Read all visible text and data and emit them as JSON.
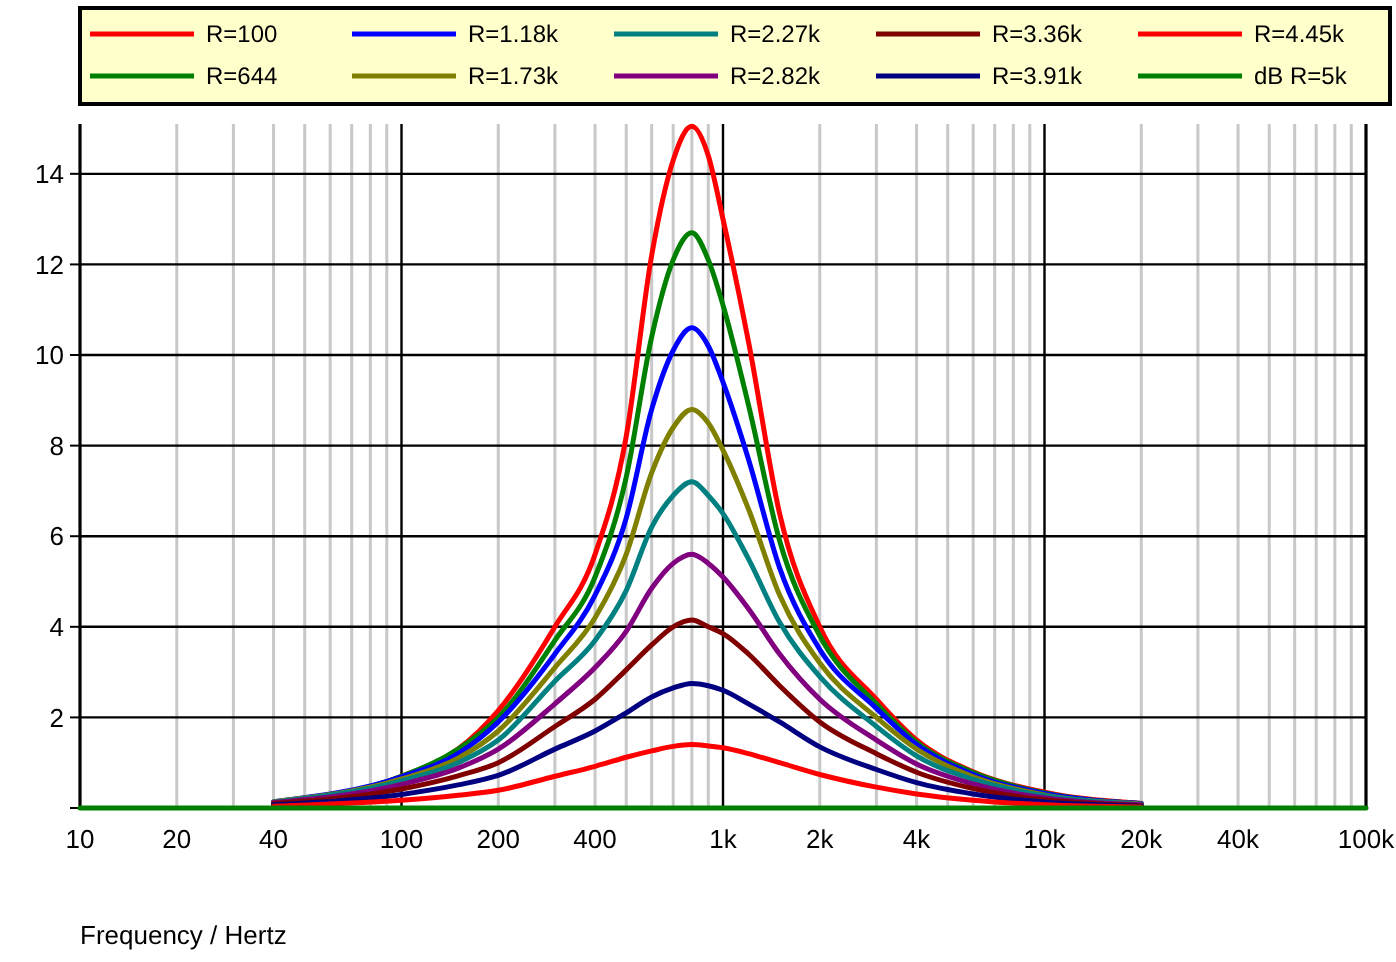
{
  "chart_data": {
    "type": "line",
    "xlabel": "Frequency / Hertz",
    "log": "x",
    "grid": true,
    "legend": "top",
    "line_style": "solid",
    "marker": "none",
    "x": [
      10,
      40,
      100,
      150,
      200,
      300,
      400,
      500,
      600,
      700,
      800,
      900,
      1000,
      1200,
      1500,
      2000,
      3000,
      4000,
      6000,
      10000,
      20000,
      100000
    ],
    "xlim": [
      10,
      100000
    ],
    "ylim": [
      0,
      15.1
    ],
    "xticks": [
      10,
      20,
      {
        "value": 30,
        "label": null
      },
      40,
      {
        "value": 50,
        "label": null
      },
      {
        "value": 60,
        "label": null
      },
      {
        "value": 70,
        "label": null
      },
      {
        "value": 80,
        "label": null
      },
      {
        "value": 90,
        "label": null
      },
      100,
      200,
      {
        "value": 300,
        "label": null
      },
      400,
      {
        "value": 500,
        "label": null
      },
      {
        "value": 600,
        "label": null
      },
      {
        "value": 700,
        "label": null
      },
      {
        "value": 800,
        "label": null
      },
      {
        "value": 900,
        "label": null
      },
      {
        "value": 1000,
        "label": "1k"
      },
      {
        "value": 2000,
        "label": "2k"
      },
      {
        "value": 3000,
        "label": null
      },
      {
        "value": 4000,
        "label": "4k"
      },
      {
        "value": 5000,
        "label": null
      },
      {
        "value": 6000,
        "label": null
      },
      {
        "value": 7000,
        "label": null
      },
      {
        "value": 8000,
        "label": null
      },
      {
        "value": 9000,
        "label": null
      },
      {
        "value": 10000,
        "label": "10k"
      },
      {
        "value": 20000,
        "label": "20k"
      },
      {
        "value": 30000,
        "label": null
      },
      {
        "value": 40000,
        "label": "40k"
      },
      {
        "value": 50000,
        "label": null
      },
      {
        "value": 60000,
        "label": null
      },
      {
        "value": 70000,
        "label": null
      },
      {
        "value": 80000,
        "label": null
      },
      {
        "value": 90000,
        "label": null
      },
      {
        "value": 100000,
        "label": "100k"
      }
    ],
    "yticks": [
      {
        "value": 0,
        "label": null
      },
      2,
      4,
      6,
      8,
      10,
      12,
      14
    ],
    "series": [
      {
        "name": "R=100",
        "color": "#ff0000",
        "values": [
          null,
          0.1,
          0.7,
          1.3,
          2.15,
          4.0,
          5.6,
          8.2,
          12.2,
          14.3,
          15.05,
          14.4,
          13.0,
          10.3,
          6.5,
          4.0,
          2.4,
          1.5,
          0.8,
          0.35,
          0.1,
          null
        ]
      },
      {
        "name": "R=644",
        "color": "#008000",
        "values": [
          null,
          0.12,
          0.7,
          1.3,
          2.0,
          3.7,
          5.1,
          7.3,
          10.4,
          12.1,
          12.7,
          12.1,
          11.1,
          8.9,
          5.9,
          3.8,
          2.3,
          1.45,
          0.78,
          0.33,
          0.1,
          null
        ]
      },
      {
        "name": "R=1.18k",
        "color": "#0000ff",
        "values": [
          null,
          0.14,
          0.69,
          1.2,
          1.9,
          3.4,
          4.7,
          6.4,
          8.8,
          10.1,
          10.6,
          10.2,
          9.4,
          7.7,
          5.3,
          3.5,
          2.2,
          1.4,
          0.74,
          0.32,
          0.1,
          null
        ]
      },
      {
        "name": "R=1.73k",
        "color": "#808000",
        "values": [
          null,
          0.14,
          0.64,
          1.1,
          1.7,
          3.1,
          4.2,
          5.6,
          7.4,
          8.4,
          8.8,
          8.5,
          7.9,
          6.6,
          4.7,
          3.2,
          2.0,
          1.3,
          0.69,
          0.29,
          0.09,
          null
        ]
      },
      {
        "name": "R=2.27k",
        "color": "#008080",
        "values": [
          null,
          0.13,
          0.6,
          1.0,
          1.5,
          2.8,
          3.7,
          4.8,
          6.2,
          6.9,
          7.2,
          6.9,
          6.5,
          5.5,
          4.1,
          2.9,
          1.8,
          1.15,
          0.63,
          0.27,
          0.08,
          null
        ]
      },
      {
        "name": "R=2.82k",
        "color": "#800080",
        "values": [
          null,
          0.12,
          0.52,
          0.88,
          1.3,
          2.3,
          3.1,
          3.9,
          4.85,
          5.4,
          5.6,
          5.4,
          5.1,
          4.4,
          3.4,
          2.4,
          1.5,
          0.97,
          0.53,
          0.22,
          0.07,
          null
        ]
      },
      {
        "name": "R=3.36k",
        "color": "#800000",
        "values": [
          null,
          0.1,
          0.42,
          0.71,
          1.0,
          1.8,
          2.4,
          3.05,
          3.6,
          4.0,
          4.15,
          4.0,
          3.85,
          3.4,
          2.7,
          1.9,
          1.2,
          0.79,
          0.43,
          0.18,
          0.05,
          null
        ]
      },
      {
        "name": "R=3.91k",
        "color": "#000080",
        "values": [
          null,
          0.07,
          0.3,
          0.51,
          0.72,
          1.3,
          1.7,
          2.1,
          2.45,
          2.65,
          2.75,
          2.7,
          2.6,
          2.3,
          1.9,
          1.35,
          0.85,
          0.56,
          0.31,
          0.13,
          0.04,
          null
        ]
      },
      {
        "name": "R=4.45k",
        "color": "#ff0000",
        "values": [
          null,
          0.04,
          0.17,
          0.28,
          0.39,
          0.7,
          0.92,
          1.12,
          1.26,
          1.36,
          1.4,
          1.37,
          1.33,
          1.2,
          1.0,
          0.74,
          0.46,
          0.31,
          0.17,
          0.07,
          0.02,
          null
        ]
      },
      {
        "name": "dB R=5k",
        "color": "#008000",
        "values": [
          0,
          0,
          0,
          0,
          0,
          0,
          0,
          0,
          0,
          0,
          0,
          0,
          0,
          0,
          0,
          0,
          0,
          0,
          0,
          0,
          0,
          0
        ]
      }
    ]
  }
}
